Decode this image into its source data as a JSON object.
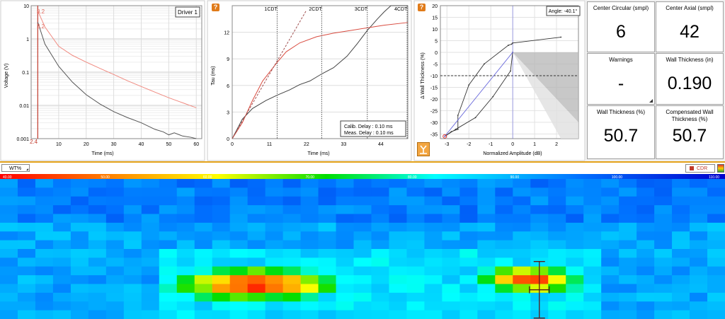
{
  "plot1": {
    "legend_label": "Driver 1",
    "marker_top": "8.2",
    "marker_mid": "3.2",
    "marker_left": "2.4",
    "chart_data": {
      "type": "line",
      "xlabel": "Time (ms)",
      "ylabel": "Voltage (V)",
      "yscale": "log",
      "xlim": [
        0,
        62
      ],
      "ylim": [
        0.001,
        10
      ],
      "x_ticks": [
        "10",
        "20",
        "30",
        "40",
        "50",
        "60"
      ],
      "y_ticks": [
        "0.001",
        "0.01",
        "0.1",
        "1",
        "10"
      ],
      "series": [
        {
          "name": "reference",
          "color": "#f08a80",
          "x": [
            2.4,
            5,
            10,
            15,
            20,
            25,
            30,
            35,
            40,
            45,
            50,
            55,
            60
          ],
          "y": [
            7,
            2.3,
            0.6,
            0.32,
            0.2,
            0.13,
            0.085,
            0.055,
            0.037,
            0.025,
            0.017,
            0.012,
            0.0085
          ]
        },
        {
          "name": "measured",
          "color": "#555555",
          "x": [
            2.4,
            5,
            10,
            15,
            20,
            25,
            30,
            35,
            40,
            45,
            48,
            50,
            52,
            55,
            58,
            60
          ],
          "y": [
            3.2,
            0.7,
            0.15,
            0.05,
            0.021,
            0.011,
            0.0065,
            0.0043,
            0.003,
            0.0019,
            0.0016,
            0.0013,
            0.0015,
            0.0012,
            0.0011,
            0.001
          ]
        }
      ]
    }
  },
  "plot2": {
    "cdt_labels": [
      "1CDT",
      "2CDT",
      "3CDT",
      "4CDT"
    ],
    "info_box": {
      "line1": "Calib. Delay : 0.10 ms",
      "line2": "Meas. Delay : 0.10 ms"
    },
    "chart_data": {
      "type": "line",
      "xlabel": "Time (ms)",
      "ylabel": "Tau (ms)",
      "xlim": [
        0,
        52
      ],
      "ylim": [
        0,
        15
      ],
      "x_ticks": [
        "0",
        "11",
        "22",
        "33",
        "44"
      ],
      "y_ticks": [
        "0",
        "3",
        "6",
        "9",
        "12"
      ],
      "cdt_x": [
        13.3,
        26.5,
        40,
        53
      ],
      "series": [
        {
          "name": "measured",
          "color": "#444444",
          "x": [
            0,
            3,
            6,
            10,
            13.3,
            17,
            20,
            23,
            26.5,
            30,
            34,
            37,
            40,
            43,
            45,
            47,
            52
          ],
          "y": [
            0,
            2.2,
            3.4,
            4.3,
            4.9,
            5.5,
            6.1,
            6.5,
            7.3,
            8,
            9.3,
            10.7,
            12.2,
            13.5,
            14.3,
            15,
            15
          ]
        },
        {
          "name": "reference",
          "color": "#d94c40",
          "x": [
            0,
            3,
            6,
            9,
            13.3,
            16,
            20,
            25,
            30,
            35,
            40,
            45,
            52
          ],
          "y": [
            0,
            1.8,
            4.3,
            6.5,
            8.6,
            9.8,
            10.8,
            11.5,
            11.9,
            12.2,
            12.5,
            12.8,
            13.1
          ]
        },
        {
          "name": "linear-fit",
          "color": "#a05050",
          "dashed": true,
          "x": [
            0,
            22
          ],
          "y": [
            0,
            14.5
          ]
        }
      ]
    }
  },
  "plot3": {
    "angle_label": "Angle: -40.1°",
    "chart_data": {
      "type": "line",
      "xlabel": "Normalized Amplitude (dB)",
      "ylabel": "Δ Wall Thickness (%)",
      "xlim": [
        -3.3,
        3
      ],
      "ylim": [
        -37,
        20
      ],
      "x_ticks": [
        "-3",
        "-2",
        "-1",
        "0",
        "1",
        "2"
      ],
      "y_ticks": [
        "-35",
        "-30",
        "-25",
        "-20",
        "-15",
        "-10",
        "-5",
        "0",
        "5",
        "10",
        "15",
        "20"
      ],
      "threshold_y": -10,
      "series": [
        {
          "name": "loop",
          "color": "#333333",
          "x": [
            -3.1,
            -2.8,
            -2.5,
            -2.5,
            -2,
            -1.3,
            -0.2,
            -0.05,
            0,
            2.2
          ],
          "y": [
            -36,
            -34,
            -33,
            -27,
            -14,
            -5,
            3,
            3.5,
            4,
            6.5
          ]
        },
        {
          "name": "loop-lower",
          "color": "#333333",
          "x": [
            -3.1,
            -2.6,
            -1.7,
            -0.9,
            -0.1,
            0
          ],
          "y": [
            -36,
            -33,
            -28,
            -19,
            -8,
            0
          ]
        },
        {
          "name": "vector",
          "color": "#6b6bdc",
          "x": [
            -3.1,
            0
          ],
          "y": [
            -36,
            0
          ]
        }
      ]
    }
  },
  "readouts": {
    "center_circular_label": "Center Circular (smpl)",
    "center_circular_value": "6",
    "center_axial_label": "Center Axial (smpl)",
    "center_axial_value": "42",
    "warnings_label": "Warnings",
    "warnings_value": "-",
    "wall_thickness_in_label": "Wall Thickness (in)",
    "wall_thickness_in_value": "0.190",
    "wall_thickness_pct_label": "Wall Thickness (%)",
    "wall_thickness_pct_value": "50.7",
    "comp_wall_label": "Compensated Wall Thickness (%)",
    "comp_wall_value": "50.7"
  },
  "colorbar": {
    "channel_label": "WT%",
    "mode_label": "CDR",
    "ticks": [
      "40.00",
      "50.00",
      "60.00",
      "70.00",
      "80.00",
      "90.00",
      "100.00",
      "110.00"
    ]
  },
  "heatmap": {
    "chart_data": {
      "type": "heatmap",
      "value_range": [
        40,
        110
      ],
      "cursor": {
        "col": 30,
        "row": 6
      }
    }
  }
}
